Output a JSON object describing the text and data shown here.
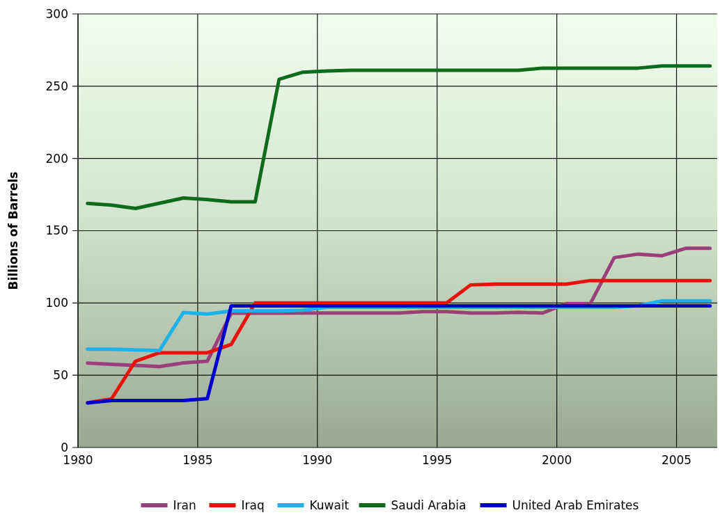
{
  "chart_data": {
    "type": "line",
    "ylabel": "Billions of Barrels",
    "x": [
      1980.4,
      1981.4,
      1982.4,
      1983.4,
      1984.4,
      1985.4,
      1986.4,
      1987.4,
      1988.4,
      1989.4,
      1990.4,
      1991.4,
      1992.4,
      1993.4,
      1994.4,
      1995.4,
      1996.4,
      1997.4,
      1998.4,
      1999.4,
      2000.4,
      2001.4,
      2002.4,
      2003.4,
      2004.4,
      2005.4,
      2006.4
    ],
    "series": [
      {
        "name": "Iran",
        "color": "#9b3f7a",
        "values": [
          58.4,
          57.5,
          56.8,
          56,
          58.5,
          59.7,
          92.9,
          92.9,
          92.9,
          93,
          93,
          93,
          93,
          93,
          94,
          94,
          93,
          93,
          93.5,
          93,
          99.6,
          99.5,
          131.4,
          133.8,
          132.7,
          137.9,
          137.9
        ]
      },
      {
        "name": "Iraq",
        "color": "#e8120c",
        "values": [
          31,
          33.6,
          59.7,
          65.5,
          65.5,
          65.5,
          71.3,
          100,
          100,
          100,
          100,
          100,
          100,
          100,
          100,
          100,
          112.5,
          113,
          113,
          113,
          113,
          115.5,
          115.5,
          115.5,
          115.5,
          115.5,
          115.5
        ]
      },
      {
        "name": "Kuwait",
        "color": "#1ab2e8",
        "values": [
          68,
          68,
          67.5,
          67,
          93.4,
          92.3,
          94.5,
          94.5,
          94.5,
          95,
          97,
          97,
          97,
          97,
          97,
          97,
          97,
          97,
          97,
          97,
          97,
          97,
          97,
          98,
          101.5,
          101.5,
          101.5
        ]
      },
      {
        "name": "Saudi Arabia",
        "color": "#0e6b1c",
        "values": [
          168.9,
          167.7,
          165.4,
          169,
          172.6,
          171.5,
          170,
          170,
          254.8,
          259.7,
          260.5,
          261,
          261,
          261,
          261,
          261,
          261,
          261,
          261,
          262.5,
          262.5,
          262.5,
          262.5,
          262.5,
          264,
          264,
          264
        ]
      },
      {
        "name": "United Arab Emirates",
        "color": "#0000cc",
        "values": [
          30.8,
          32.5,
          32.5,
          32.5,
          32.5,
          33.8,
          98,
          98,
          98,
          98,
          98,
          98,
          98,
          98,
          98,
          98,
          98,
          98,
          98,
          98,
          98,
          98,
          98,
          98,
          98,
          98,
          98
        ]
      }
    ],
    "xlim": [
      1980,
      2006.7
    ],
    "xticks": [
      1980,
      1985,
      1990,
      1995,
      2000,
      2005
    ],
    "ylim": [
      0,
      300
    ],
    "yticks": [
      0,
      50,
      100,
      150,
      200,
      250,
      300
    ],
    "grid": true,
    "legend": "bottom",
    "marker": "none",
    "line_style": "solid"
  }
}
